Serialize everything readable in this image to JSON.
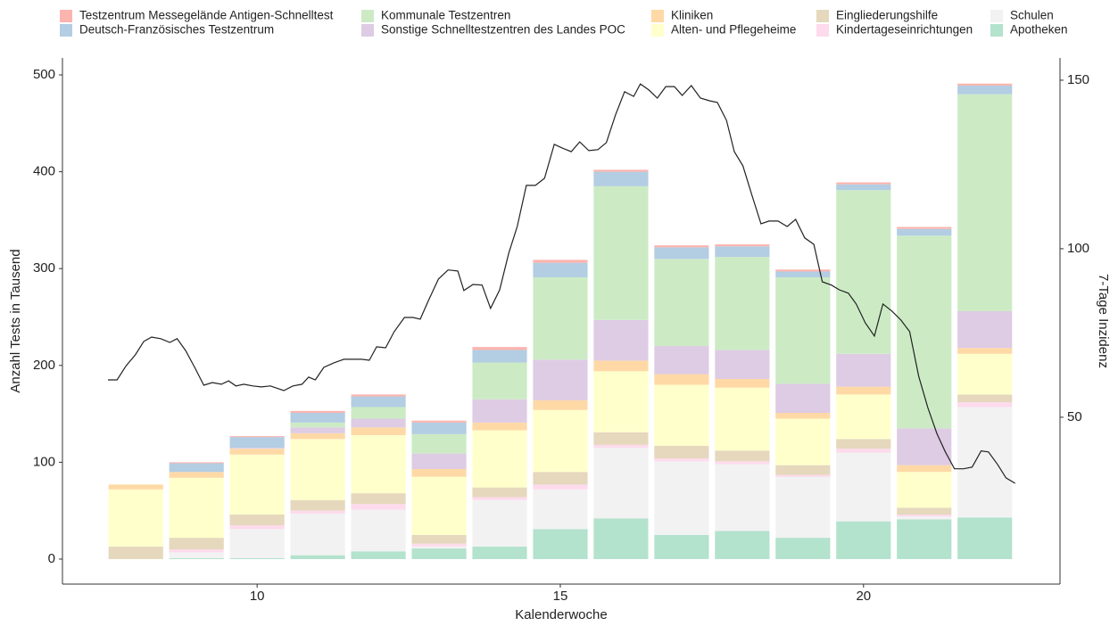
{
  "chart_data": {
    "type": "bar",
    "stacked": true,
    "x_label": "Kalenderwoche",
    "y_label": "Anzahl Tests in Tausend",
    "y2_label": "7-Tage Inzidenz",
    "x": [
      8,
      9,
      10,
      11,
      12,
      13,
      14,
      15,
      16,
      17,
      18,
      19,
      20,
      21,
      22
    ],
    "xlim": [
      6.79,
      23.24
    ],
    "xticks": [
      10,
      15,
      20
    ],
    "ylim": [
      -25.8,
      517.5
    ],
    "yticks": [
      0,
      100,
      200,
      300,
      400,
      500
    ],
    "y2lim": [
      0.5,
      156.6
    ],
    "y2ticks": [
      50,
      100,
      150
    ],
    "series": [
      {
        "name": "Testzentrum Messegelände Antigen-Schnelltest",
        "color": "#fbb4ae",
        "values": [
          0,
          1,
          1,
          2,
          2,
          2,
          3,
          3,
          2,
          2,
          2,
          2,
          2,
          2,
          2
        ]
      },
      {
        "name": "Deutsch-Französisches Testzentrum",
        "color": "#b3cde3",
        "values": [
          0,
          9,
          11,
          10,
          11,
          12,
          13,
          15,
          15,
          12,
          11,
          6,
          6,
          7,
          9
        ]
      },
      {
        "name": "Kommunale Testzentren",
        "color": "#ccebc5",
        "values": [
          0,
          0,
          0,
          5,
          12,
          20,
          38,
          85,
          138,
          90,
          96,
          110,
          169,
          199,
          224
        ]
      },
      {
        "name": "Sonstige Schnelltestzentren des Landes POC",
        "color": "#decbe4",
        "values": [
          0,
          0,
          1,
          6,
          9,
          16,
          24,
          42,
          42,
          29,
          30,
          30,
          34,
          38,
          38
        ]
      },
      {
        "name": "Kliniken",
        "color": "#fed9a6",
        "values": [
          5,
          6,
          6,
          6,
          8,
          8,
          8,
          10,
          11,
          11,
          9,
          6,
          8,
          7,
          6
        ]
      },
      {
        "name": "Alten- und Pflegeheime",
        "color": "#ffffcc",
        "values": [
          59,
          62,
          62,
          63,
          60,
          60,
          59,
          64,
          63,
          63,
          65,
          48,
          46,
          37,
          42
        ]
      },
      {
        "name": "Eingliederungshilfe",
        "color": "#e5d8bd",
        "values": [
          13,
          12,
          11,
          11,
          11,
          9,
          10,
          13,
          13,
          13,
          11,
          10,
          10,
          7,
          8
        ]
      },
      {
        "name": "Kindertageseinrichtungen",
        "color": "#fddaec",
        "values": [
          0,
          3,
          4,
          3,
          6,
          3,
          3,
          5,
          3,
          3,
          3,
          2,
          4,
          2,
          5
        ]
      },
      {
        "name": "Schulen",
        "color": "#f2f2f2",
        "values": [
          0,
          6,
          30,
          43,
          43,
          2,
          48,
          41,
          73,
          76,
          69,
          63,
          71,
          3,
          114
        ]
      },
      {
        "name": "Apotheken",
        "color": "#b3e2cd",
        "values": [
          0,
          1,
          1,
          4,
          8,
          11,
          13,
          31,
          42,
          25,
          29,
          22,
          39,
          41,
          43
        ]
      }
    ],
    "line": {
      "color": "#222222",
      "axis": "y2",
      "x": [
        7.54,
        7.69,
        7.84,
        7.99,
        8.13,
        8.26,
        8.41,
        8.56,
        8.68,
        8.82,
        8.97,
        9.12,
        9.26,
        9.41,
        9.53,
        9.65,
        9.78,
        9.93,
        10.07,
        10.22,
        10.44,
        10.59,
        10.74,
        10.85,
        10.96,
        11.1,
        11.26,
        11.43,
        11.57,
        11.72,
        11.85,
        11.97,
        12.12,
        12.26,
        12.43,
        12.57,
        12.69,
        12.82,
        12.99,
        13.15,
        13.31,
        13.41,
        13.56,
        13.71,
        13.85,
        14.0,
        14.15,
        14.29,
        14.44,
        14.59,
        14.74,
        14.9,
        15.03,
        15.18,
        15.32,
        15.47,
        15.62,
        15.76,
        15.91,
        16.06,
        16.21,
        16.32,
        16.46,
        16.6,
        16.74,
        16.88,
        17.01,
        17.16,
        17.31,
        17.46,
        17.59,
        17.74,
        17.87,
        18.01,
        18.16,
        18.31,
        18.44,
        18.59,
        18.74,
        18.88,
        19.03,
        19.18,
        19.32,
        19.47,
        19.6,
        19.75,
        19.88,
        20.03,
        20.18,
        20.32,
        20.47,
        20.62,
        20.76,
        20.91,
        21.06,
        21.21,
        21.35,
        21.5,
        21.65,
        21.79,
        21.94,
        22.06,
        22.21,
        22.35,
        22.5
      ],
      "values": [
        61.1,
        61.1,
        65.3,
        68.5,
        72.5,
        73.8,
        73.3,
        72.2,
        73.3,
        69.8,
        64.8,
        59.5,
        60.3,
        59.8,
        60.8,
        59.3,
        59.8,
        59.3,
        59.0,
        59.3,
        57.9,
        59.3,
        59.8,
        61.9,
        61.1,
        64.8,
        66.1,
        67.2,
        67.2,
        67.2,
        66.9,
        70.9,
        70.6,
        75.4,
        79.6,
        79.6,
        79.1,
        84.4,
        91.0,
        93.7,
        93.4,
        87.6,
        89.4,
        89.2,
        82.3,
        87.8,
        98.7,
        106.6,
        118.8,
        118.8,
        120.9,
        131.0,
        129.9,
        128.8,
        131.7,
        129.1,
        129.4,
        131.5,
        139.7,
        146.6,
        145.2,
        148.9,
        147.1,
        144.7,
        148.1,
        148.1,
        145.5,
        148.4,
        144.7,
        143.9,
        143.4,
        138.1,
        128.8,
        124.6,
        115.9,
        107.4,
        108.2,
        108.2,
        106.6,
        108.7,
        103.2,
        101.3,
        90.2,
        89.2,
        87.8,
        86.8,
        83.6,
        78.0,
        74.1,
        83.6,
        81.5,
        78.8,
        75.4,
        62.2,
        52.9,
        45.2,
        39.7,
        34.7,
        34.7,
        35.2,
        40.0,
        39.7,
        36.0,
        32.0,
        30.4
      ]
    }
  }
}
